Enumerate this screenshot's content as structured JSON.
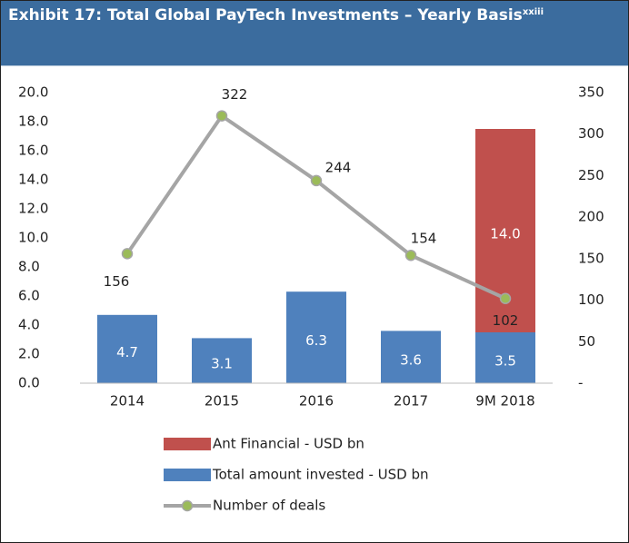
{
  "chart_data": {
    "type": "bar-line",
    "title": "Exhibit 17: Total Global PayTech Investments – Yearly Basis",
    "title_note": "xxiii",
    "categories": [
      "2014",
      "2015",
      "2016",
      "2017",
      "9M 2018"
    ],
    "series": [
      {
        "name": "Total amount invested - USD bn",
        "color": "#4f81bd",
        "type": "bar",
        "values": [
          4.7,
          3.1,
          6.3,
          3.6,
          3.5
        ],
        "value_labels": [
          "4.7",
          "3.1",
          "6.3",
          "3.6",
          "3.5"
        ]
      },
      {
        "name": "Ant Financial - USD bn",
        "color": "#c0504d",
        "type": "bar",
        "values": [
          null,
          null,
          null,
          null,
          14.0
        ],
        "value_labels": [
          null,
          null,
          null,
          null,
          "14.0"
        ]
      },
      {
        "name": "Number of deals",
        "color": "#a5a5a5",
        "marker_color": "#9bbb59",
        "type": "line",
        "axis": "y2",
        "values": [
          156,
          322,
          244,
          154,
          102
        ]
      }
    ],
    "ylim": [
      0,
      20
    ],
    "yticks": [
      {
        "value": 0,
        "label": "0.0"
      },
      {
        "value": 2,
        "label": "2.0"
      },
      {
        "value": 4,
        "label": "4.0"
      },
      {
        "value": 6,
        "label": "6.0"
      },
      {
        "value": 8,
        "label": "8.0"
      },
      {
        "value": 10,
        "label": "10.0"
      },
      {
        "value": 12,
        "label": "12.0"
      },
      {
        "value": 14,
        "label": "14.0"
      },
      {
        "value": 16,
        "label": "16.0"
      },
      {
        "value": 18,
        "label": "18.0"
      },
      {
        "value": 20,
        "label": "20.0"
      }
    ],
    "y2lim": [
      0,
      350
    ],
    "y2ticks": [
      {
        "value": 0,
        "label": "-"
      },
      50,
      100,
      150,
      200,
      250,
      300,
      350
    ],
    "grid": false,
    "legend": "bottom"
  }
}
